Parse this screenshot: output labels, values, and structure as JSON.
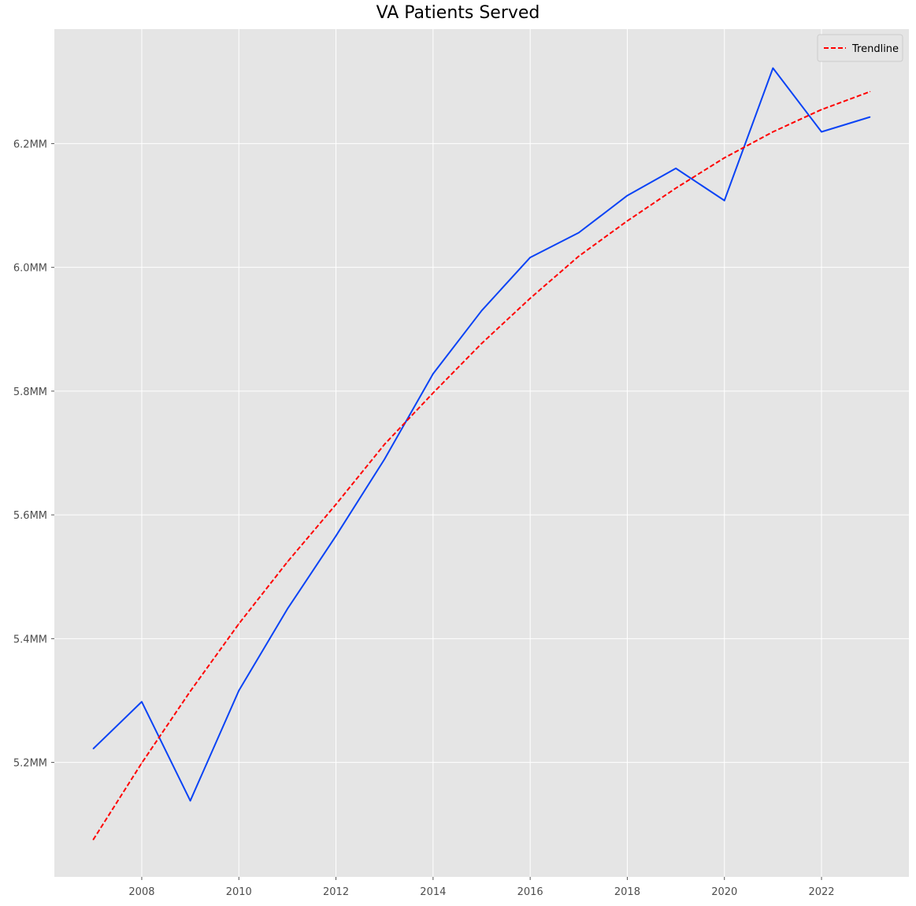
{
  "chart_data": {
    "type": "line",
    "title": "VA Patients Served",
    "xlabel": "",
    "ylabel": "",
    "x": [
      2007,
      2008,
      2009,
      2010,
      2011,
      2012,
      2013,
      2014,
      2015,
      2016,
      2017,
      2018,
      2019,
      2020,
      2021,
      2022,
      2023
    ],
    "xlim": [
      2006.2,
      2023.8
    ],
    "ylim": [
      5.015,
      6.385
    ],
    "x_ticks": [
      2008,
      2010,
      2012,
      2014,
      2016,
      2018,
      2020,
      2022
    ],
    "y_ticks": [
      5.2,
      5.4,
      5.6,
      5.8,
      6.0,
      6.2
    ],
    "y_tick_labels": [
      "5.2MM",
      "5.4MM",
      "5.6MM",
      "5.8MM",
      "6.0MM",
      "6.2MM"
    ],
    "grid": true,
    "legend_placement": "top-right",
    "series": [
      {
        "values": [
          5.222,
          5.298,
          5.138,
          5.316,
          5.448,
          5.566,
          5.69,
          5.828,
          5.93,
          6.016,
          6.056,
          6.116,
          6.16,
          6.108,
          6.322,
          6.219,
          6.243
        ],
        "color": "#0a43f5",
        "style": "solid"
      },
      {
        "name": "Trendline",
        "values": [
          5.075,
          5.199,
          5.315,
          5.424,
          5.524,
          5.617,
          5.714,
          5.797,
          5.877,
          5.95,
          6.018,
          6.075,
          6.128,
          6.177,
          6.219,
          6.255,
          6.284
        ],
        "color": "#ff0000",
        "style": "dashed"
      }
    ]
  }
}
